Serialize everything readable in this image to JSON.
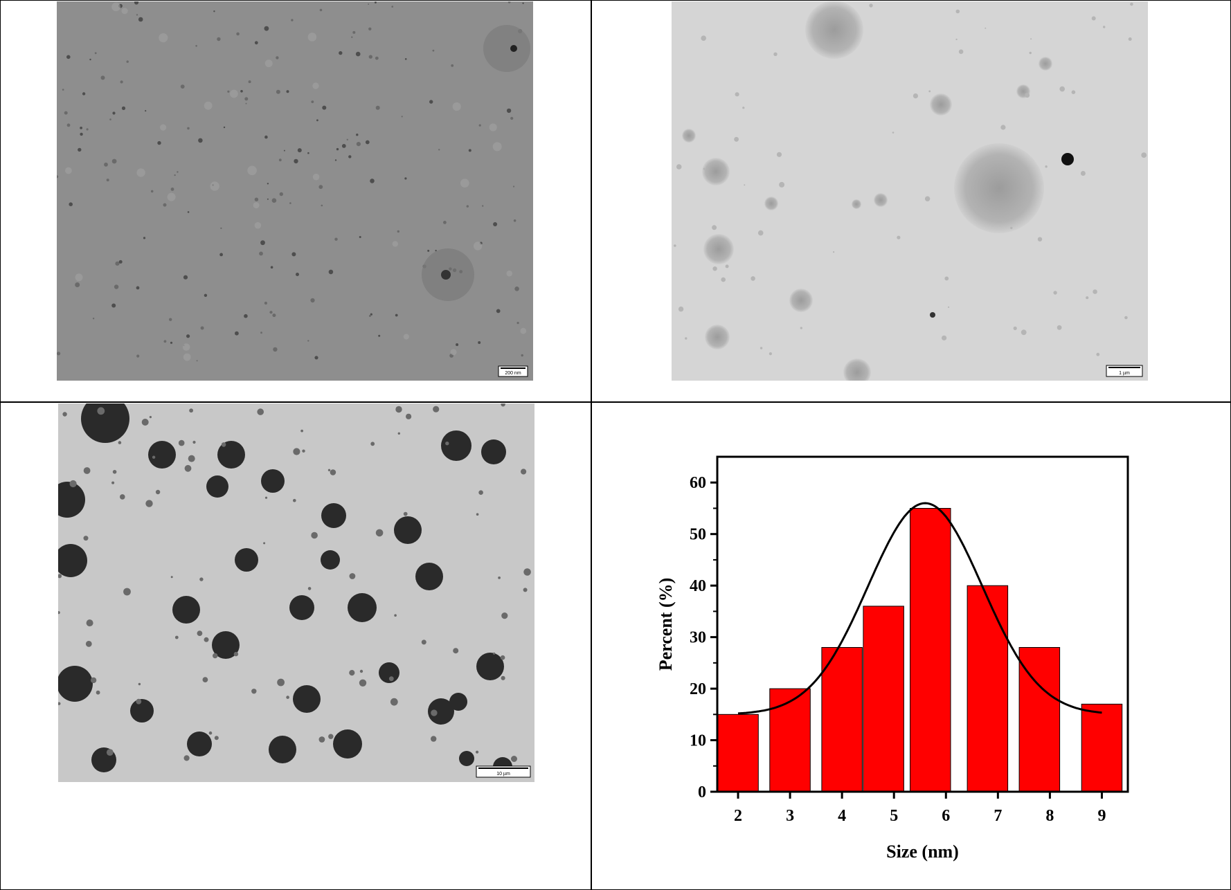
{
  "figure": {
    "panels": [
      {
        "id": "tem-1",
        "kind": "micrograph",
        "scale_bar": "200 nm"
      },
      {
        "id": "tem-2",
        "kind": "micrograph",
        "scale_bar": "1 µm"
      },
      {
        "id": "tem-3",
        "kind": "micrograph",
        "scale_bar": "10 µm"
      }
    ]
  },
  "chart_data": {
    "type": "bar",
    "x": [
      2,
      3,
      4,
      5,
      6,
      7,
      8,
      9
    ],
    "bars": [
      {
        "x": 2,
        "value": 15
      },
      {
        "x": 3,
        "value": 20
      },
      {
        "x": 4,
        "value": 28
      },
      {
        "x": 4.8,
        "value": 36
      },
      {
        "x": 5.7,
        "value": 55
      },
      {
        "x": 6.8,
        "value": 40
      },
      {
        "x": 7.8,
        "value": 28
      },
      {
        "x": 9,
        "value": 17
      }
    ],
    "fit_curve": {
      "type": "gaussian",
      "baseline": 15,
      "peak_x": 5.6,
      "peak_y": 56,
      "x_range": [
        2,
        9
      ]
    },
    "xlabel": "Size (nm)",
    "ylabel": "Percent (%)",
    "xticks": [
      "2",
      "3",
      "4",
      "5",
      "6",
      "7",
      "8",
      "9"
    ],
    "yticks": [
      "0",
      "10",
      "20",
      "30",
      "40",
      "50",
      "60"
    ],
    "xlim": [
      1.6,
      9.5
    ],
    "ylim": [
      0,
      65
    ],
    "bar_color": "#ff0000",
    "curve_color": "#000000",
    "grid": false
  }
}
